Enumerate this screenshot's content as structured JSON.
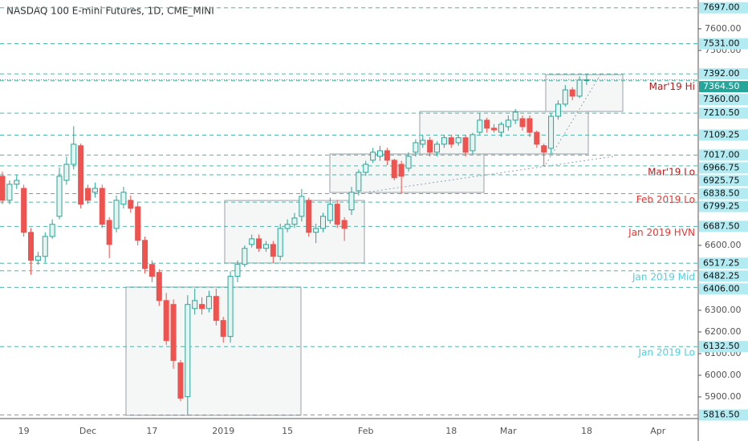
{
  "chart_data": {
    "type": "candlestick",
    "title": "NASDAQ 100 E-mini Futures, 1D, CME_MINI",
    "categories": [
      null,
      null,
      null,
      "19",
      null,
      null,
      null,
      null,
      null,
      null,
      null,
      null,
      "Dec",
      null,
      null,
      null,
      null,
      null,
      null,
      null,
      null,
      "17",
      null,
      null,
      null,
      null,
      null,
      null,
      null,
      null,
      null,
      "2019",
      null,
      null,
      null,
      null,
      null,
      null,
      null,
      null,
      "15",
      null,
      null,
      null,
      null,
      null,
      null,
      null,
      null,
      null,
      null,
      "Feb",
      null,
      null,
      null,
      null,
      null,
      null,
      null,
      null,
      null,
      null,
      null,
      "18",
      null,
      null,
      null,
      null,
      null,
      null,
      null,
      "Mar",
      null,
      null,
      null,
      null,
      null,
      null,
      null,
      null,
      null,
      null,
      "18",
      null,
      null,
      null,
      null,
      null,
      null,
      null,
      null,
      null,
      "Apr",
      null,
      null,
      null,
      null,
      null
    ],
    "open": [
      6919,
      6808,
      6882,
      6863,
      6660,
      6531,
      6549,
      6641,
      6734,
      6900,
      6974,
      7060,
      6863,
      6845,
      6863,
      6715,
      6678,
      6790,
      6808,
      6778,
      6623,
      6512,
      6475,
      6345,
      6327,
      6057,
      5901,
      6308,
      6327,
      6308,
      6364,
      6253,
      6179,
      6457,
      6512,
      6604,
      6630,
      6586,
      6604,
      6549,
      6678,
      6697,
      6734,
      6808,
      6660,
      6678,
      6715,
      6790,
      6715,
      6764,
      6852,
      6937,
      6993,
      7011,
      7037,
      6993,
      6974,
      6956,
      7030,
      7067,
      7085,
      7030,
      7067,
      7097,
      7074,
      7097,
      7037,
      7122,
      7178,
      7141,
      7122,
      7148,
      7178,
      7185,
      7185,
      7122,
      7060,
      7048,
      7196,
      7252,
      7318,
      7289,
      7363,
      null,
      null,
      null,
      null,
      null,
      null,
      null,
      null,
      null,
      null,
      null,
      null,
      null,
      null,
      null
    ],
    "high": [
      6940,
      6900,
      6925,
      6880,
      6680,
      6570,
      6660,
      6720,
      6960,
      7010,
      7150,
      7070,
      6880,
      6890,
      6880,
      6730,
      6830,
      6870,
      6830,
      6800,
      6640,
      6530,
      6490,
      6380,
      6350,
      6070,
      6370,
      6400,
      6360,
      6390,
      6400,
      6270,
      6480,
      6530,
      6600,
      6650,
      6650,
      6620,
      6620,
      6700,
      6720,
      6750,
      6860,
      6820,
      6700,
      6750,
      6820,
      6810,
      6730,
      6870,
      6950,
      6990,
      7050,
      7060,
      7050,
      7000,
      6990,
      7030,
      7090,
      7110,
      7100,
      7080,
      7110,
      7110,
      7110,
      7110,
      7120,
      7210,
      7190,
      7160,
      7170,
      7200,
      7230,
      7200,
      7200,
      7130,
      7070,
      7210,
      7270,
      7340,
      7330,
      7380,
      7392,
      null,
      null,
      null,
      null,
      null,
      null,
      null,
      null,
      null,
      null,
      null,
      null,
      null,
      null,
      null
    ],
    "low": [
      6790,
      6790,
      6860,
      6640,
      6464,
      6510,
      6520,
      6630,
      6720,
      6880,
      6950,
      6770,
      6790,
      6820,
      6680,
      6541,
      6660,
      6770,
      6750,
      6600,
      6470,
      6430,
      6320,
      6140,
      6030,
      5880,
      5816.5,
      6280,
      6280,
      6290,
      6230,
      6150,
      6150,
      6430,
      6500,
      6590,
      6570,
      6570,
      6520,
      6530,
      6660,
      6680,
      6710,
      6640,
      6610,
      6660,
      6700,
      6680,
      6620,
      6740,
      6830,
      6920,
      6980,
      6990,
      6970,
      6900,
      6838.5,
      6940,
      7010,
      7050,
      7010,
      7010,
      7050,
      7050,
      7060,
      7010,
      7020,
      7110,
      7120,
      7120,
      7100,
      7130,
      7160,
      7130,
      7100,
      7050,
      6966.75,
      7020,
      7180,
      7240,
      7270,
      7280,
      7340,
      null,
      null,
      null,
      null,
      null,
      null,
      null,
      null,
      null,
      null,
      null,
      null,
      null,
      null,
      null
    ],
    "close": [
      6808,
      6882,
      6900,
      6660,
      6531,
      6549,
      6641,
      6697,
      6919,
      6974,
      7067,
      6790,
      6808,
      6863,
      6697,
      6604,
      6808,
      6845,
      6771,
      6623,
      6493,
      6457,
      6345,
      6160,
      6068,
      5894,
      6327,
      6345,
      6308,
      6364,
      6253,
      6179,
      6457,
      6512,
      6586,
      6630,
      6586,
      6604,
      6549,
      6678,
      6697,
      6726,
      6826,
      6660,
      6678,
      6734,
      6790,
      6697,
      6678,
      6845,
      6937,
      6974,
      7030,
      7037,
      6993,
      6912,
      6919,
      7011,
      7074,
      7085,
      7030,
      7067,
      7097,
      7067,
      7097,
      7030,
      7111,
      7178,
      7141,
      7133,
      7159,
      7178,
      7215,
      7148,
      7122,
      7067,
      7030,
      7196,
      7252,
      7318,
      7289,
      7363,
      7364.5,
      null,
      null,
      null,
      null,
      null,
      null,
      null,
      null,
      null,
      null,
      null,
      null,
      null,
      null,
      null
    ],
    "up_color": "#26a69a",
    "down_color": "#ef5350",
    "ylim": [
      5800,
      7733
    ],
    "yticks": [
      {
        "value": 7600,
        "label": "7600.00"
      },
      {
        "value": 7500,
        "label": "7500.00"
      },
      {
        "value": 6600,
        "label": "6600.00"
      },
      {
        "value": 6300,
        "label": "6300.00"
      },
      {
        "value": 6200,
        "label": "6200.00"
      },
      {
        "value": 6100,
        "label": "6100.00"
      },
      {
        "value": 6000,
        "label": "6000.00"
      },
      {
        "value": 5900,
        "label": "5900.00"
      }
    ],
    "levels": [
      {
        "value": 7697,
        "label": "7697.00"
      },
      {
        "value": 7531,
        "label": "7531.00"
      },
      {
        "value": 7392,
        "label": "7392.00"
      },
      {
        "value": 7364.5,
        "label": "7364.50",
        "current": true
      },
      {
        "value": 7360,
        "label": "7360.00",
        "note": "Mar'19 Hi",
        "note_color": "#b71c1c"
      },
      {
        "value": 7210.5,
        "label": "7210.50"
      },
      {
        "value": 7109.25,
        "label": "7109.25"
      },
      {
        "value": 7017,
        "label": "7017.00"
      },
      {
        "value": 6966.75,
        "label": "6966.75",
        "note": "Mar'19 Lo",
        "note_color": "#b71c1c"
      },
      {
        "value": 6925.75,
        "label": "6925.75"
      },
      {
        "value": 6838.5,
        "label": "6838.50",
        "note": "Feb 2019 Lo",
        "note_color": "#e53935"
      },
      {
        "value": 6799.25,
        "label": "6799.25"
      },
      {
        "value": 6687.5,
        "label": "6687.50",
        "note": "Jan 2019 HVN",
        "note_color": "#e53935"
      },
      {
        "value": 6517.25,
        "label": "6517.25"
      },
      {
        "value": 6482.25,
        "label": "6482.25",
        "note": "Jan 2019 Mid",
        "note_color": "#4dd0e1"
      },
      {
        "value": 6406,
        "label": "6406.00"
      },
      {
        "value": 6132.5,
        "label": "6132.50",
        "note": "Jan 2019 Lo",
        "note_color": "#4dd0e1"
      },
      {
        "value": 5816.5,
        "label": "5816.50"
      }
    ]
  }
}
